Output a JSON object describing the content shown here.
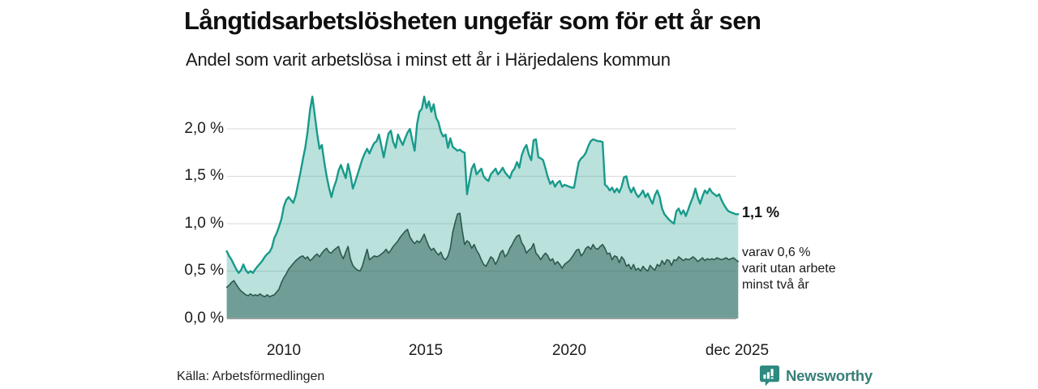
{
  "header": {
    "title": "Långtidsarbetslösheten ungefär som för ett år sen",
    "subtitle": "Andel som varit arbetslösa i minst ett år i Härjedalens kommun"
  },
  "chart_data": {
    "type": "area",
    "title": "Långtidsarbetslösheten ungefär som för ett år sen",
    "subtitle": "Andel som varit arbetslösa i minst ett år i Härjedalens kommun",
    "unit": "%",
    "start_year": 2008,
    "frequency": "monthly",
    "grid": "horizontal",
    "ylim": [
      0,
      2.4
    ],
    "y_tick_labels": [
      "2,0 %",
      "1,5 %",
      "1,0 %",
      "0,5 %",
      "0,0 %"
    ],
    "y_tick_values": [
      2.0,
      1.5,
      1.0,
      0.5,
      0.0
    ],
    "x_tick_labels": [
      "2010",
      "2015",
      "2020",
      "dec 2025"
    ],
    "x_tick_years": [
      2010,
      2015,
      2020,
      2025.92
    ],
    "series": [
      {
        "name": "Andel arbetslösa minst ett år",
        "color": "#189a8b",
        "fill": "rgba(26,154,140,0.30)",
        "stroke_width": 2.4,
        "end_value_label": "1,1 %",
        "values": [
          0.71,
          0.66,
          0.62,
          0.57,
          0.52,
          0.48,
          0.51,
          0.57,
          0.51,
          0.48,
          0.5,
          0.48,
          0.52,
          0.55,
          0.58,
          0.61,
          0.65,
          0.68,
          0.7,
          0.75,
          0.85,
          0.9,
          0.97,
          1.05,
          1.18,
          1.25,
          1.28,
          1.25,
          1.22,
          1.3,
          1.42,
          1.54,
          1.68,
          1.8,
          1.97,
          2.2,
          2.34,
          2.15,
          1.95,
          1.79,
          1.83,
          1.65,
          1.5,
          1.38,
          1.28,
          1.38,
          1.45,
          1.56,
          1.62,
          1.55,
          1.48,
          1.63,
          1.52,
          1.37,
          1.44,
          1.52,
          1.6,
          1.68,
          1.74,
          1.79,
          1.74,
          1.8,
          1.85,
          1.87,
          1.94,
          1.82,
          1.7,
          1.83,
          1.95,
          1.98,
          1.86,
          1.8,
          1.94,
          1.88,
          1.83,
          1.9,
          1.96,
          2.0,
          1.88,
          1.77,
          2.05,
          2.18,
          2.21,
          2.34,
          2.22,
          2.29,
          2.18,
          2.26,
          2.12,
          2.07,
          1.97,
          1.92,
          1.94,
          1.8,
          1.9,
          1.81,
          1.79,
          1.77,
          1.78,
          1.76,
          1.75,
          1.31,
          1.45,
          1.58,
          1.63,
          1.52,
          1.55,
          1.58,
          1.5,
          1.47,
          1.45,
          1.52,
          1.55,
          1.58,
          1.52,
          1.55,
          1.59,
          1.54,
          1.51,
          1.48,
          1.55,
          1.58,
          1.65,
          1.59,
          1.72,
          1.79,
          1.83,
          1.73,
          1.67,
          1.88,
          1.89,
          1.7,
          1.69,
          1.67,
          1.58,
          1.49,
          1.42,
          1.45,
          1.39,
          1.43,
          1.45,
          1.39,
          1.41,
          1.4,
          1.39,
          1.38,
          1.38,
          1.52,
          1.65,
          1.69,
          1.71,
          1.75,
          1.82,
          1.87,
          1.89,
          1.88,
          1.87,
          1.87,
          1.86,
          1.41,
          1.39,
          1.35,
          1.38,
          1.33,
          1.37,
          1.33,
          1.39,
          1.49,
          1.5,
          1.39,
          1.33,
          1.38,
          1.32,
          1.28,
          1.31,
          1.35,
          1.28,
          1.32,
          1.26,
          1.21,
          1.3,
          1.35,
          1.28,
          1.16,
          1.1,
          1.07,
          1.04,
          1.02,
          1.0,
          1.13,
          1.16,
          1.1,
          1.14,
          1.08,
          1.15,
          1.22,
          1.28,
          1.37,
          1.28,
          1.21,
          1.29,
          1.35,
          1.32,
          1.37,
          1.33,
          1.31,
          1.29,
          1.31,
          1.25,
          1.2,
          1.16,
          1.13,
          1.12,
          1.11,
          1.1,
          1.1
        ]
      },
      {
        "name": "varav arbetslösa minst två år",
        "color": "#2d5850",
        "fill": "rgba(23,77,64,0.45)",
        "stroke_width": 1.6,
        "end_value_label": "0,6 %",
        "values": [
          0.33,
          0.35,
          0.38,
          0.4,
          0.36,
          0.32,
          0.29,
          0.27,
          0.25,
          0.24,
          0.26,
          0.24,
          0.25,
          0.24,
          0.26,
          0.24,
          0.23,
          0.25,
          0.23,
          0.24,
          0.25,
          0.28,
          0.31,
          0.38,
          0.43,
          0.47,
          0.52,
          0.55,
          0.58,
          0.61,
          0.63,
          0.65,
          0.66,
          0.63,
          0.65,
          0.61,
          0.63,
          0.66,
          0.68,
          0.65,
          0.69,
          0.72,
          0.74,
          0.7,
          0.69,
          0.72,
          0.74,
          0.76,
          0.68,
          0.63,
          0.7,
          0.76,
          0.63,
          0.56,
          0.53,
          0.51,
          0.5,
          0.55,
          0.64,
          0.73,
          0.62,
          0.64,
          0.66,
          0.65,
          0.66,
          0.68,
          0.7,
          0.73,
          0.69,
          0.72,
          0.76,
          0.79,
          0.82,
          0.86,
          0.89,
          0.92,
          0.94,
          0.86,
          0.82,
          0.79,
          0.82,
          0.8,
          0.84,
          0.89,
          0.82,
          0.76,
          0.72,
          0.74,
          0.7,
          0.67,
          0.7,
          0.64,
          0.62,
          0.66,
          0.74,
          0.91,
          1.01,
          1.1,
          1.11,
          0.93,
          0.78,
          0.82,
          0.8,
          0.74,
          0.78,
          0.72,
          0.68,
          0.62,
          0.57,
          0.55,
          0.6,
          0.65,
          0.63,
          0.57,
          0.62,
          0.69,
          0.72,
          0.65,
          0.68,
          0.74,
          0.78,
          0.83,
          0.87,
          0.88,
          0.8,
          0.76,
          0.69,
          0.72,
          0.74,
          0.79,
          0.69,
          0.66,
          0.62,
          0.66,
          0.69,
          0.66,
          0.61,
          0.63,
          0.57,
          0.6,
          0.57,
          0.53,
          0.57,
          0.59,
          0.61,
          0.64,
          0.68,
          0.72,
          0.73,
          0.66,
          0.69,
          0.74,
          0.76,
          0.73,
          0.78,
          0.74,
          0.73,
          0.76,
          0.78,
          0.74,
          0.68,
          0.69,
          0.62,
          0.66,
          0.65,
          0.59,
          0.65,
          0.62,
          0.55,
          0.57,
          0.52,
          0.57,
          0.51,
          0.53,
          0.5,
          0.55,
          0.52,
          0.5,
          0.56,
          0.53,
          0.51,
          0.57,
          0.55,
          0.61,
          0.57,
          0.62,
          0.61,
          0.56,
          0.62,
          0.61,
          0.65,
          0.63,
          0.61,
          0.63,
          0.62,
          0.63,
          0.65,
          0.63,
          0.6,
          0.62,
          0.64,
          0.61,
          0.63,
          0.62,
          0.63,
          0.62,
          0.64,
          0.63,
          0.62,
          0.63,
          0.64,
          0.62,
          0.63,
          0.64,
          0.62,
          0.6
        ]
      }
    ],
    "end_labels": {
      "primary": "1,1 %",
      "secondary_line1": "varav 0,6 %",
      "secondary_line2": "varit utan arbete",
      "secondary_line3": "minst två år"
    }
  },
  "footer": {
    "source": "Källa: Arbetsförmedlingen",
    "logo_text": "Newsworthy"
  },
  "colors": {
    "accent_teal": "#189a8b",
    "dark_teal_line": "#2d5850",
    "gridline": "#d9d9d9",
    "baseline": "#9aa0a0",
    "brand_teal": "#2e8a80",
    "text": "#111111"
  }
}
